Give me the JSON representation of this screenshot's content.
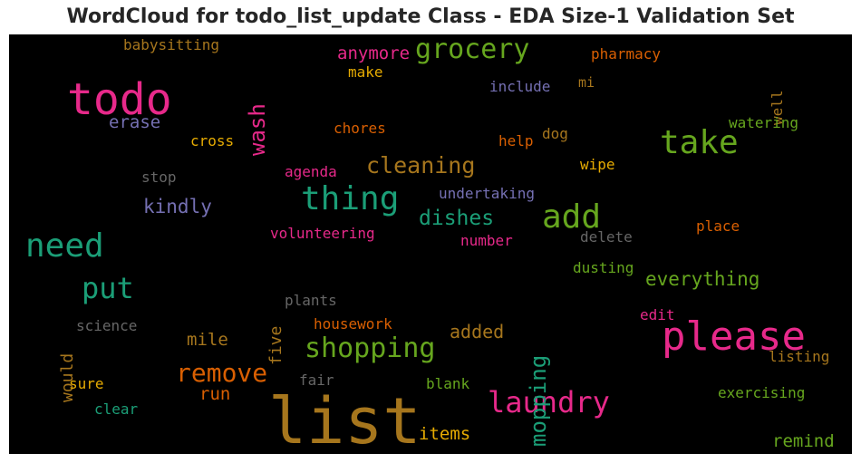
{
  "chart_data": {
    "type": "wordcloud",
    "title": "WordCloud for todo_list_update Class - EDA Size-1 Validation Set",
    "background": "#000000",
    "colormap": [
      "#1b9e77",
      "#d95f02",
      "#7570b3",
      "#e7298a",
      "#66a61e",
      "#e6ab02",
      "#a6761d",
      "#666666"
    ],
    "words": [
      {
        "text": "list",
        "color": "#a6761d",
        "rotated": false
      },
      {
        "text": "todo",
        "color": "#e7298a",
        "rotated": false
      },
      {
        "text": "please",
        "color": "#e7298a",
        "rotated": false
      },
      {
        "text": "need",
        "color": "#1b9e77",
        "rotated": false
      },
      {
        "text": "thing",
        "color": "#1b9e77",
        "rotated": false
      },
      {
        "text": "take",
        "color": "#66a61e",
        "rotated": false
      },
      {
        "text": "add",
        "color": "#66a61e",
        "rotated": false
      },
      {
        "text": "laundry",
        "color": "#e7298a",
        "rotated": false
      },
      {
        "text": "grocery",
        "color": "#66a61e",
        "rotated": false
      },
      {
        "text": "shopping",
        "color": "#66a61e",
        "rotated": false
      },
      {
        "text": "put",
        "color": "#1b9e77",
        "rotated": false
      },
      {
        "text": "remove",
        "color": "#d95f02",
        "rotated": false
      },
      {
        "text": "cleaning",
        "color": "#a6761d",
        "rotated": false
      },
      {
        "text": "dishes",
        "color": "#1b9e77",
        "rotated": false
      },
      {
        "text": "wash",
        "color": "#e7298a",
        "rotated": true
      },
      {
        "text": "mopping",
        "color": "#1b9e77",
        "rotated": true
      },
      {
        "text": "everything",
        "color": "#66a61e",
        "rotated": false
      },
      {
        "text": "anymore",
        "color": "#e7298a",
        "rotated": false
      },
      {
        "text": "kindly",
        "color": "#7570b3",
        "rotated": false
      },
      {
        "text": "erase",
        "color": "#7570b3",
        "rotated": false
      },
      {
        "text": "added",
        "color": "#a6761d",
        "rotated": false
      },
      {
        "text": "mile",
        "color": "#a6761d",
        "rotated": false
      },
      {
        "text": "items",
        "color": "#e6ab02",
        "rotated": false
      },
      {
        "text": "remind",
        "color": "#66a61e",
        "rotated": false
      },
      {
        "text": "run",
        "color": "#d95f02",
        "rotated": false
      },
      {
        "text": "five",
        "color": "#a6761d",
        "rotated": true
      },
      {
        "text": "would",
        "color": "#a6761d",
        "rotated": true
      },
      {
        "text": "undertaking",
        "color": "#7570b3",
        "rotated": false
      },
      {
        "text": "volunteering",
        "color": "#e7298a",
        "rotated": false
      },
      {
        "text": "housework",
        "color": "#d95f02",
        "rotated": false
      },
      {
        "text": "chores",
        "color": "#d95f02",
        "rotated": false
      },
      {
        "text": "cross",
        "color": "#e6ab02",
        "rotated": false
      },
      {
        "text": "agenda",
        "color": "#e7298a",
        "rotated": false
      },
      {
        "text": "babysitting",
        "color": "#a6761d",
        "rotated": false
      },
      {
        "text": "pharmacy",
        "color": "#d95f02",
        "rotated": false
      },
      {
        "text": "include",
        "color": "#7570b3",
        "rotated": false
      },
      {
        "text": "make",
        "color": "#e6ab02",
        "rotated": false
      },
      {
        "text": "mi",
        "color": "#a6761d",
        "rotated": false
      },
      {
        "text": "well",
        "color": "#a6761d",
        "rotated": true
      },
      {
        "text": "watering",
        "color": "#66a61e",
        "rotated": false
      },
      {
        "text": "help",
        "color": "#d95f02",
        "rotated": false
      },
      {
        "text": "dog",
        "color": "#a6761d",
        "rotated": false
      },
      {
        "text": "wipe",
        "color": "#e6ab02",
        "rotated": false
      },
      {
        "text": "stop",
        "color": "#666666",
        "rotated": false
      },
      {
        "text": "place",
        "color": "#d95f02",
        "rotated": false
      },
      {
        "text": "delete",
        "color": "#666666",
        "rotated": false
      },
      {
        "text": "number",
        "color": "#e7298a",
        "rotated": false
      },
      {
        "text": "dusting",
        "color": "#66a61e",
        "rotated": false
      },
      {
        "text": "plants",
        "color": "#666666",
        "rotated": false
      },
      {
        "text": "science",
        "color": "#666666",
        "rotated": false
      },
      {
        "text": "edit",
        "color": "#e7298a",
        "rotated": false
      },
      {
        "text": "listing",
        "color": "#a6761d",
        "rotated": false
      },
      {
        "text": "fair",
        "color": "#666666",
        "rotated": false
      },
      {
        "text": "blank",
        "color": "#66a61e",
        "rotated": false
      },
      {
        "text": "sure",
        "color": "#e6ab02",
        "rotated": false
      },
      {
        "text": "clear",
        "color": "#1b9e77",
        "rotated": false
      },
      {
        "text": "exercising",
        "color": "#66a61e",
        "rotated": false
      }
    ]
  }
}
